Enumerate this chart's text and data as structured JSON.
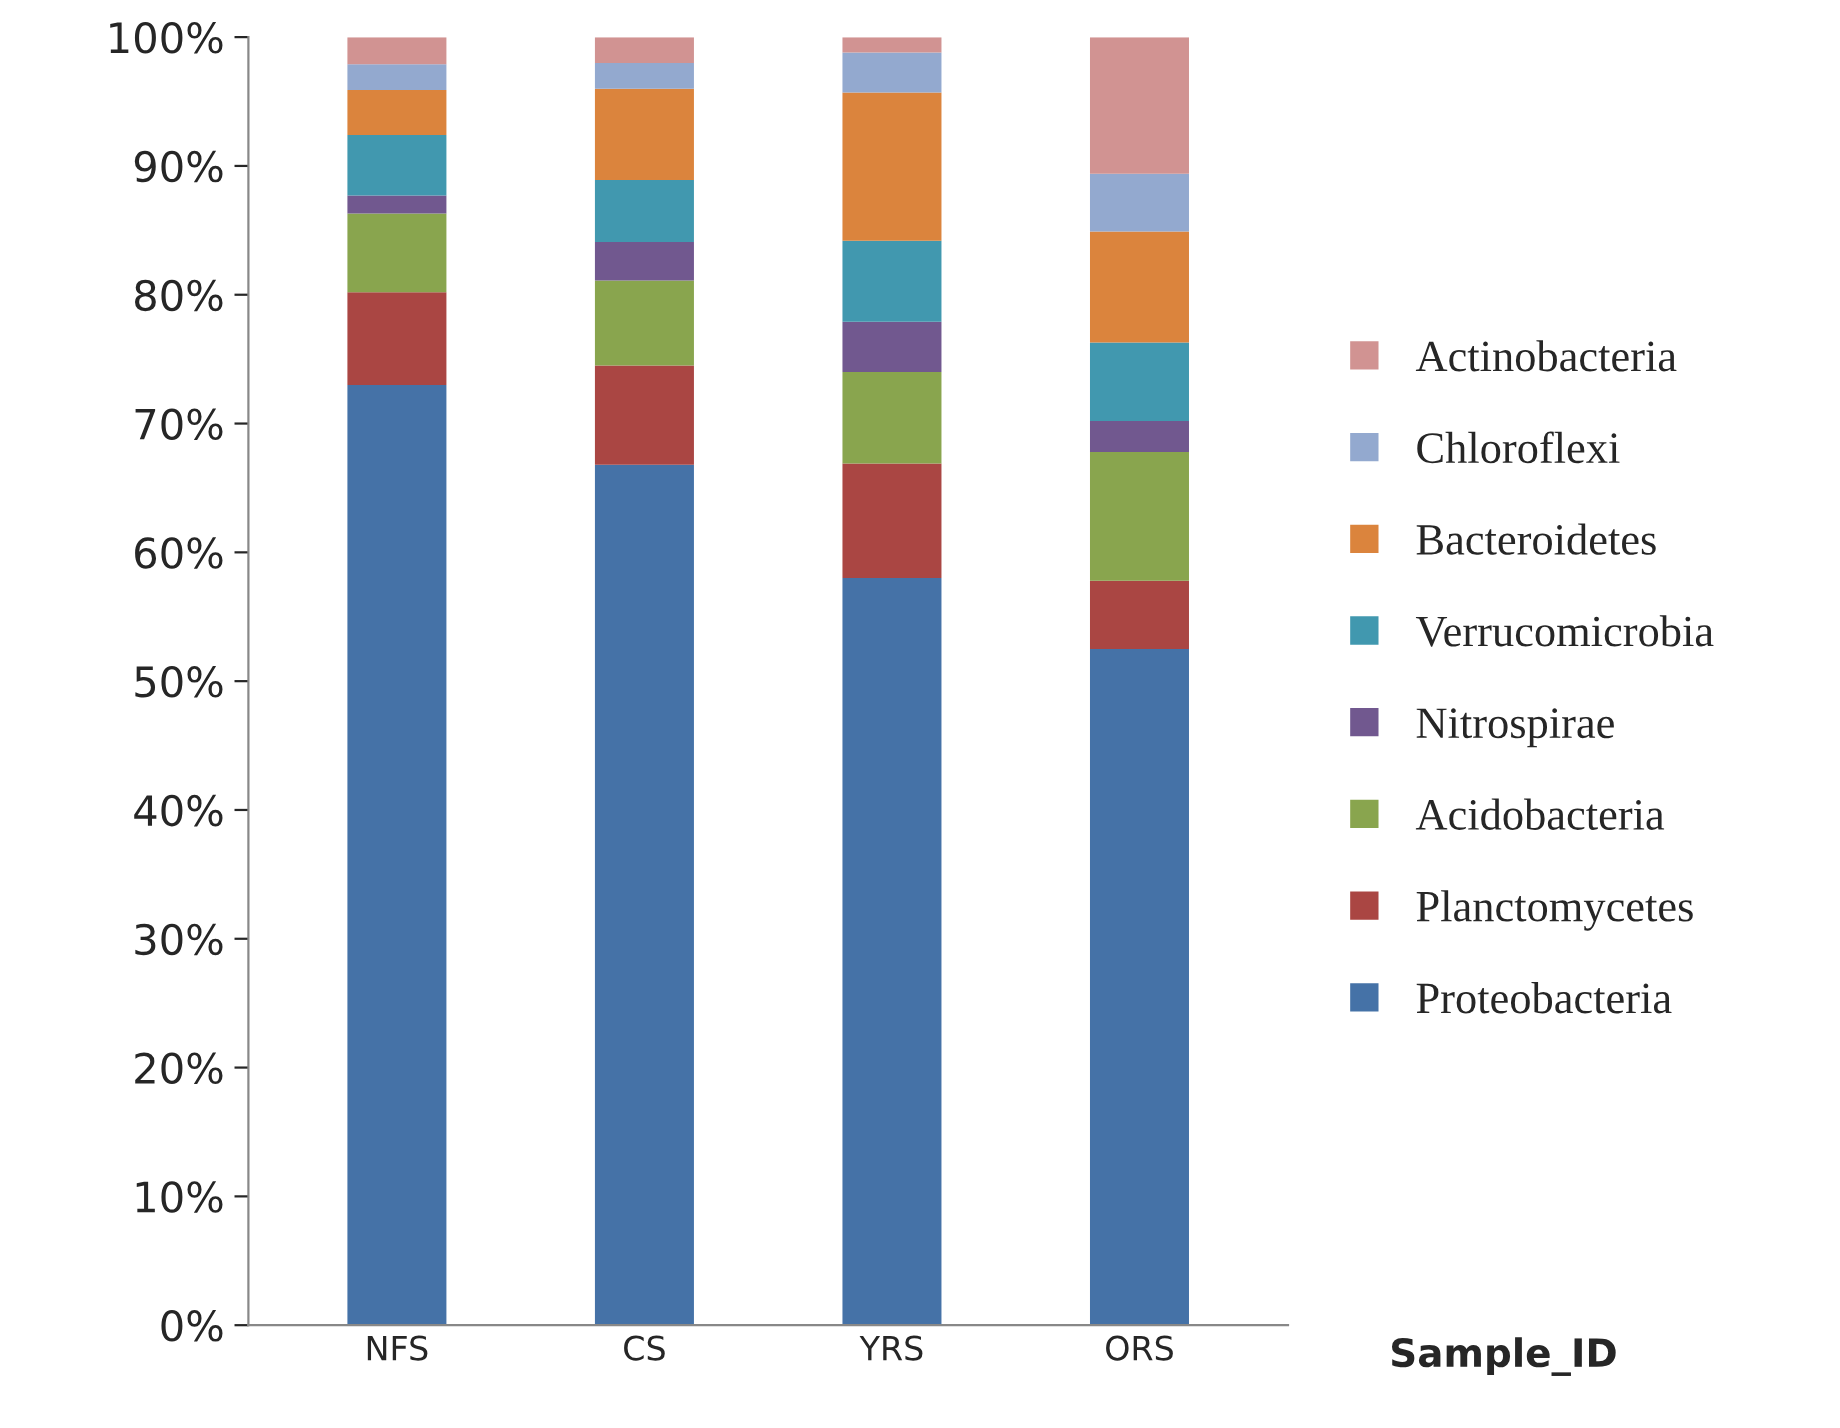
{
  "chart_data": {
    "type": "bar",
    "stacked": true,
    "xlabel": "Sample_ID",
    "categories": [
      "NFS",
      "CS",
      "YRS",
      "ORS"
    ],
    "series": [
      {
        "name": "Proteobacteria",
        "color": "#4572a7",
        "values": [
          73.0,
          66.8,
          58.0,
          52.5
        ]
      },
      {
        "name": "Planctomycetes",
        "color": "#aa4643",
        "values": [
          7.2,
          7.7,
          8.9,
          5.3
        ]
      },
      {
        "name": "Acidobacteria",
        "color": "#89a54e",
        "values": [
          6.1,
          6.6,
          7.1,
          10.0
        ]
      },
      {
        "name": "Nitrospirae",
        "color": "#71588f",
        "values": [
          1.4,
          3.0,
          3.9,
          2.4
        ]
      },
      {
        "name": "Verrucomicrobia",
        "color": "#4198af",
        "values": [
          4.7,
          4.8,
          6.3,
          6.1
        ]
      },
      {
        "name": "Bacteroidetes",
        "color": "#db843d",
        "values": [
          3.5,
          7.1,
          11.5,
          8.6
        ]
      },
      {
        "name": "Chloroflexi",
        "color": "#93a9cf",
        "values": [
          2.0,
          2.0,
          3.1,
          4.5
        ]
      },
      {
        "name": "Actinobacteria",
        "color": "#d19392",
        "values": [
          2.1,
          2.0,
          1.2,
          10.6
        ]
      }
    ],
    "ylim": [
      0,
      100
    ],
    "yticks": [
      {
        "value": 0,
        "label": "0%"
      },
      {
        "value": 10,
        "label": "10%"
      },
      {
        "value": 20,
        "label": "20%"
      },
      {
        "value": 30,
        "label": "30%"
      },
      {
        "value": 40,
        "label": "40%"
      },
      {
        "value": 50,
        "label": "50%"
      },
      {
        "value": 60,
        "label": "60%"
      },
      {
        "value": 70,
        "label": "70%"
      },
      {
        "value": 80,
        "label": "80%"
      },
      {
        "value": 90,
        "label": "90%"
      },
      {
        "value": 100,
        "label": "100%"
      }
    ],
    "grid": false,
    "legend": "right"
  }
}
